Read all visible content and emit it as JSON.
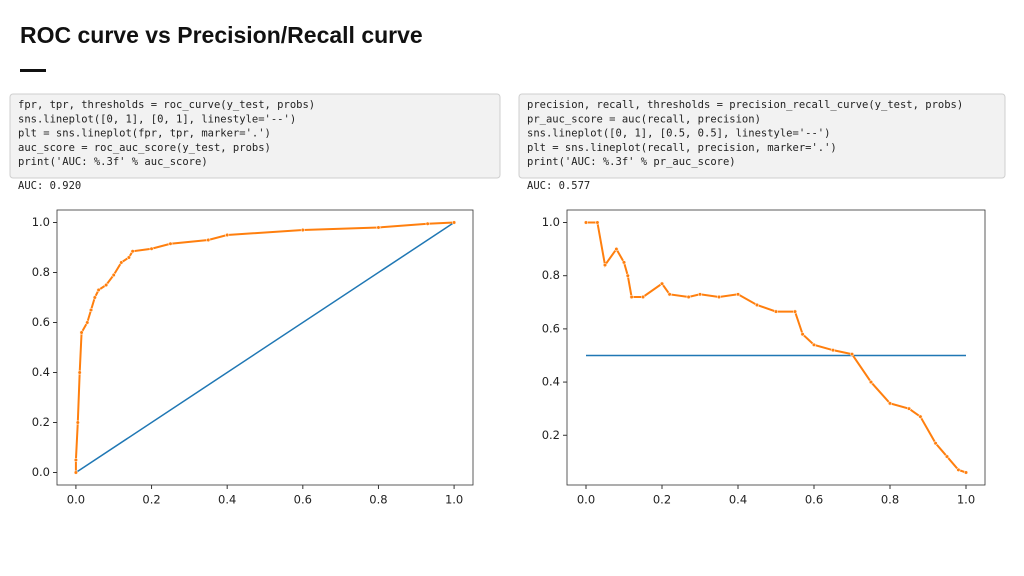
{
  "title": "ROC curve vs Precision/Recall curve",
  "code_blocks": [
    {
      "lines": [
        "fpr, tpr, thresholds = roc_curve(y_test, probs)",
        "sns.lineplot([0, 1], [0, 1], linestyle='--')",
        "plt = sns.lineplot(fpr, tpr, marker='.')",
        "auc_score = roc_auc_score(y_test, probs)",
        "print('AUC: %.3f' % auc_score)"
      ],
      "output": "AUC: 0.920"
    },
    {
      "lines": [
        "precision, recall, thresholds = precision_recall_curve(y_test, probs)",
        "pr_auc_score = auc(recall, precision)",
        "sns.lineplot([0, 1], [0.5, 0.5], linestyle='--')",
        "plt = sns.lineplot(recall, precision, marker='.')",
        "print('AUC: %.3f' % pr_auc_score)"
      ],
      "output": "AUC: 0.577"
    }
  ],
  "chart_data": [
    {
      "type": "line",
      "xlim": [
        -0.05,
        1.05
      ],
      "ylim": [
        -0.05,
        1.05
      ],
      "xticks": [
        {
          "value": 0,
          "label": "0.0"
        },
        0.2,
        0.4,
        0.6,
        0.8,
        {
          "value": 1,
          "label": "1.0"
        }
      ],
      "yticks": [
        {
          "value": 0,
          "label": "0.0"
        },
        0.2,
        0.4,
        0.6,
        0.8,
        {
          "value": 1,
          "label": "1.0"
        }
      ],
      "series": [
        {
          "color": "#1f77b4",
          "x": [
            0,
            1
          ],
          "values": [
            0,
            1
          ]
        },
        {
          "color": "#ff7f0e",
          "marker": true,
          "x": [
            0,
            0,
            0.005,
            0.01,
            0.015,
            0.03,
            0.04,
            0.05,
            0.06,
            0.08,
            0.1,
            0.12,
            0.14,
            0.15,
            0.2,
            0.25,
            0.35,
            0.4,
            0.6,
            0.8,
            0.93,
            1
          ],
          "values": [
            0,
            0.05,
            0.2,
            0.4,
            0.56,
            0.6,
            0.65,
            0.7,
            0.73,
            0.75,
            0.79,
            0.84,
            0.86,
            0.885,
            0.895,
            0.915,
            0.93,
            0.95,
            0.97,
            0.98,
            0.995,
            1
          ]
        }
      ]
    },
    {
      "type": "line",
      "xlim": [
        -0.05,
        1.05
      ],
      "ylim": [
        0.013,
        1.047
      ],
      "xticks": [
        {
          "value": 0,
          "label": "0.0"
        },
        0.2,
        0.4,
        0.6,
        0.8,
        {
          "value": 1,
          "label": "1.0"
        }
      ],
      "yticks": [
        0.2,
        0.4,
        0.6,
        0.8,
        {
          "value": 1,
          "label": "1.0"
        }
      ],
      "series": [
        {
          "color": "#1f77b4",
          "x": [
            0,
            1
          ],
          "values": [
            0.5,
            0.5
          ]
        },
        {
          "color": "#ff7f0e",
          "marker": true,
          "x": [
            0,
            0.03,
            0.05,
            0.08,
            0.1,
            0.11,
            0.12,
            0.15,
            0.2,
            0.22,
            0.27,
            0.3,
            0.35,
            0.4,
            0.45,
            0.5,
            0.55,
            0.57,
            0.6,
            0.65,
            0.7,
            0.75,
            0.8,
            0.85,
            0.88,
            0.92,
            0.95,
            0.98,
            1
          ],
          "values": [
            1,
            1,
            0.84,
            0.9,
            0.85,
            0.8,
            0.72,
            0.72,
            0.77,
            0.73,
            0.72,
            0.73,
            0.72,
            0.73,
            0.69,
            0.665,
            0.665,
            0.58,
            0.54,
            0.52,
            0.505,
            0.4,
            0.32,
            0.3,
            0.27,
            0.17,
            0.12,
            0.07,
            0.06
          ]
        }
      ]
    }
  ]
}
